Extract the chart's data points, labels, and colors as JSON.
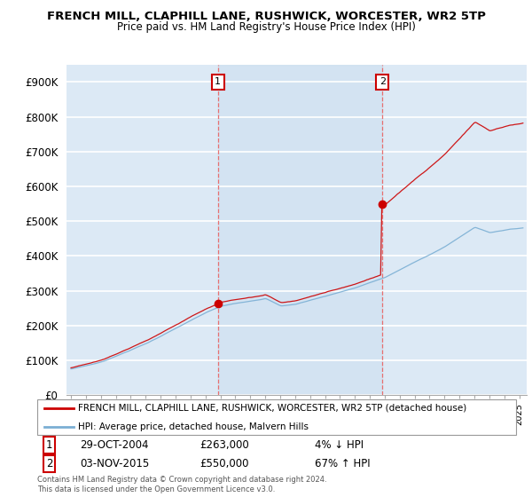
{
  "title": "FRENCH MILL, CLAPHILL LANE, RUSHWICK, WORCESTER, WR2 5TP",
  "subtitle": "Price paid vs. HM Land Registry's House Price Index (HPI)",
  "ylabel_ticks": [
    "£0",
    "£100K",
    "£200K",
    "£300K",
    "£400K",
    "£500K",
    "£600K",
    "£700K",
    "£800K",
    "£900K"
  ],
  "ytick_values": [
    0,
    100000,
    200000,
    300000,
    400000,
    500000,
    600000,
    700000,
    800000,
    900000
  ],
  "ylim": [
    0,
    950000
  ],
  "xlim_start": 1994.7,
  "xlim_end": 2025.5,
  "background_color": "#dce9f5",
  "grid_color": "#ffffff",
  "sale1_x": 2004.83,
  "sale1_y": 263000,
  "sale2_x": 2015.84,
  "sale2_y": 550000,
  "line1_color": "#cc0000",
  "line2_color": "#7bafd4",
  "shade_color": "#ccdff0",
  "legend1_label": "FRENCH MILL, CLAPHILL LANE, RUSHWICK, WORCESTER, WR2 5TP (detached house)",
  "legend2_label": "HPI: Average price, detached house, Malvern Hills",
  "sale1_date": "29-OCT-2004",
  "sale1_price": "£263,000",
  "sale1_hpi": "4% ↓ HPI",
  "sale2_date": "03-NOV-2015",
  "sale2_price": "£550,000",
  "sale2_hpi": "67% ↑ HPI",
  "footer": "Contains HM Land Registry data © Crown copyright and database right 2024.\nThis data is licensed under the Open Government Licence v3.0.",
  "vline_color": "#e87070",
  "marker_color": "#cc0000"
}
